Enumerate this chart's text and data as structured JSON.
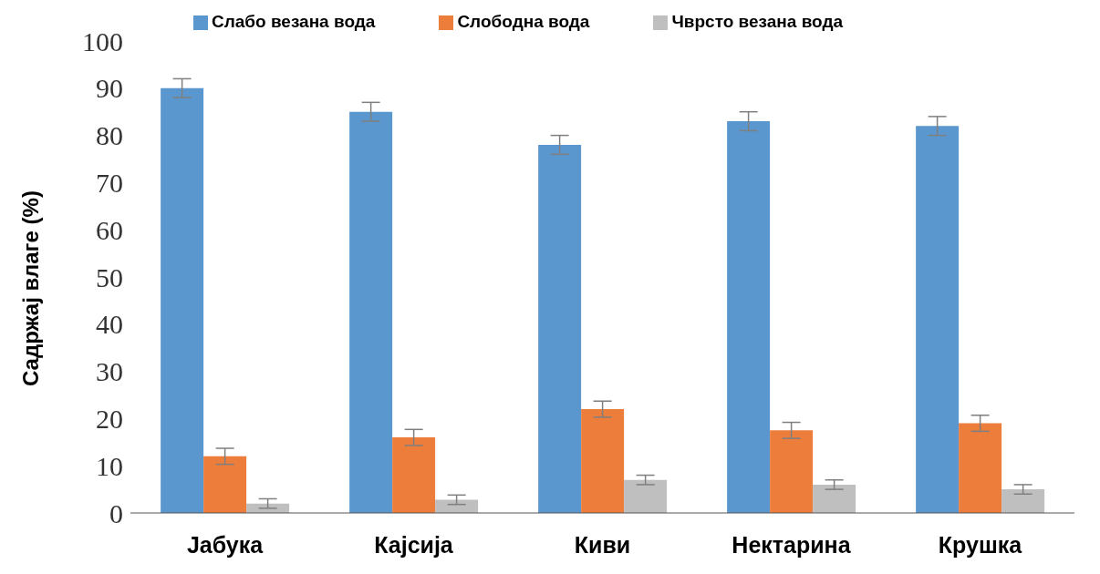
{
  "chart_data": {
    "type": "bar",
    "ylabel": "Садржај влаге (%)",
    "categories": [
      "Јабука",
      "Кајсија",
      "Киви",
      "Нектарина",
      "Крушка"
    ],
    "series": [
      {
        "name": "Слабо везана вода",
        "color": "#5b97cf",
        "values": [
          90,
          85,
          78,
          83,
          82
        ],
        "errors": [
          2,
          2,
          2,
          2,
          2
        ]
      },
      {
        "name": "Слободна вода",
        "color": "#ec7d3b",
        "values": [
          12,
          16,
          22,
          17.5,
          19
        ],
        "errors": [
          1.7,
          1.7,
          1.7,
          1.7,
          1.7
        ]
      },
      {
        "name": "Чврсто везана вода",
        "color": "#bfbfbf",
        "values": [
          2,
          2.8,
          7,
          6,
          5
        ],
        "errors": [
          1,
          1,
          1,
          1,
          1
        ]
      }
    ],
    "ylim": [
      0,
      100
    ],
    "yticks": [
      0,
      10,
      20,
      30,
      40,
      50,
      60,
      70,
      80,
      90,
      100
    ],
    "grid": false,
    "legend": "top"
  }
}
